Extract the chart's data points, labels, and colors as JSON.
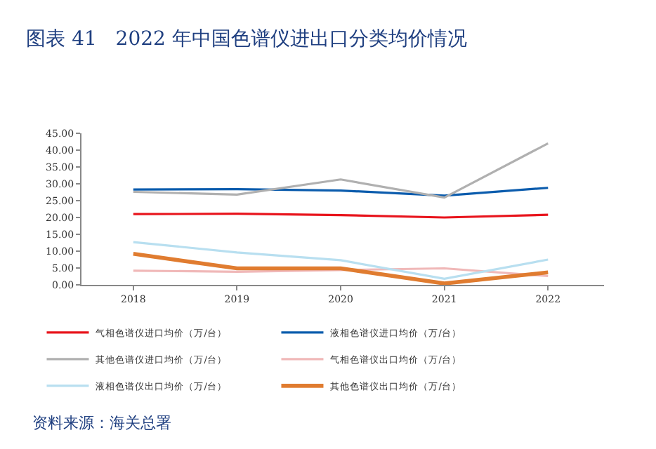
{
  "chart_data": {
    "type": "line",
    "title": "图表 41   2022 年中国色谱仪进出口分类均价情况",
    "categories": [
      "2018",
      "2019",
      "2020",
      "2021",
      "2022"
    ],
    "series": [
      {
        "name": "气相色谱仪进口均价（万/台）",
        "color": "#e8141c",
        "values": [
          21.0,
          21.1,
          20.7,
          20.0,
          20.8
        ]
      },
      {
        "name": "液相色谱仪进口均价（万/台）",
        "color": "#0b5cad",
        "values": [
          28.3,
          28.4,
          28.0,
          26.5,
          28.8
        ]
      },
      {
        "name": "其他色谱仪进口均价（万/台）",
        "color": "#b0b0b0",
        "values": [
          27.6,
          26.8,
          31.3,
          25.9,
          42.0
        ]
      },
      {
        "name": "气相色谱仪出口均价（万/台）",
        "color": "#f0b8b8",
        "values": [
          4.2,
          3.9,
          4.4,
          4.9,
          2.6
        ]
      },
      {
        "name": "液相色谱仪出口均价（万/台）",
        "color": "#b8dff0",
        "values": [
          12.7,
          9.6,
          7.3,
          1.8,
          7.5
        ]
      },
      {
        "name": "其他色谱仪出口均价（万/台）",
        "color": "#e07c30",
        "values": [
          9.2,
          4.9,
          4.9,
          0.4,
          3.7
        ]
      }
    ],
    "ylim": [
      0,
      45
    ],
    "yticks": [
      {
        "value": 0,
        "label": "0.00"
      },
      {
        "value": 5,
        "label": "5.00"
      },
      {
        "value": 10,
        "label": "10.00"
      },
      {
        "value": 15,
        "label": "15.00"
      },
      {
        "value": 20,
        "label": "20.00"
      },
      {
        "value": 25,
        "label": "25.00"
      },
      {
        "value": 30,
        "label": "30.00"
      },
      {
        "value": 35,
        "label": "35.00"
      },
      {
        "value": 40,
        "label": "40.00"
      },
      {
        "value": 45,
        "label": "45.00"
      }
    ],
    "grid": false,
    "legend": "bottom",
    "marker": "none",
    "line_style": "solid",
    "annotations": [
      "资料来源：海关总署"
    ]
  }
}
